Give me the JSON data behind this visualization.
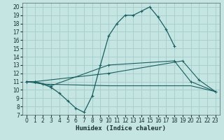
{
  "xlabel": "Humidex (Indice chaleur)",
  "background_color": "#c5e5e3",
  "grid_color": "#a8cece",
  "line_color": "#1a5f5f",
  "xlim": [
    -0.5,
    23.5
  ],
  "ylim": [
    7,
    20.5
  ],
  "xticks": [
    0,
    1,
    2,
    3,
    4,
    5,
    6,
    7,
    8,
    9,
    10,
    11,
    12,
    13,
    14,
    15,
    16,
    17,
    18,
    19,
    20,
    21,
    22,
    23
  ],
  "yticks": [
    7,
    8,
    9,
    10,
    11,
    12,
    13,
    14,
    15,
    16,
    17,
    18,
    19,
    20
  ],
  "line0_x": [
    0,
    1,
    2,
    3,
    4,
    5,
    6,
    7,
    8,
    9,
    10,
    11,
    12,
    13,
    14,
    15,
    16,
    17,
    18
  ],
  "line0_y": [
    11,
    11,
    10.7,
    10.3,
    9.6,
    8.7,
    7.8,
    7.3,
    9.3,
    13,
    16.5,
    18,
    19,
    19,
    19.5,
    20,
    18.8,
    17.3,
    15.3
  ],
  "line1_x": [
    0,
    1,
    3,
    10,
    18,
    20,
    23
  ],
  "line1_y": [
    11,
    11,
    10.5,
    13.0,
    13.5,
    11.0,
    9.8
  ],
  "line2_x": [
    0,
    2,
    10,
    20,
    23
  ],
  "line2_y": [
    11,
    10.7,
    10.5,
    10.5,
    9.8
  ],
  "line3_x": [
    0,
    1,
    10,
    19,
    21,
    23
  ],
  "line3_y": [
    11,
    11,
    12.0,
    13.5,
    11.2,
    9.8
  ]
}
